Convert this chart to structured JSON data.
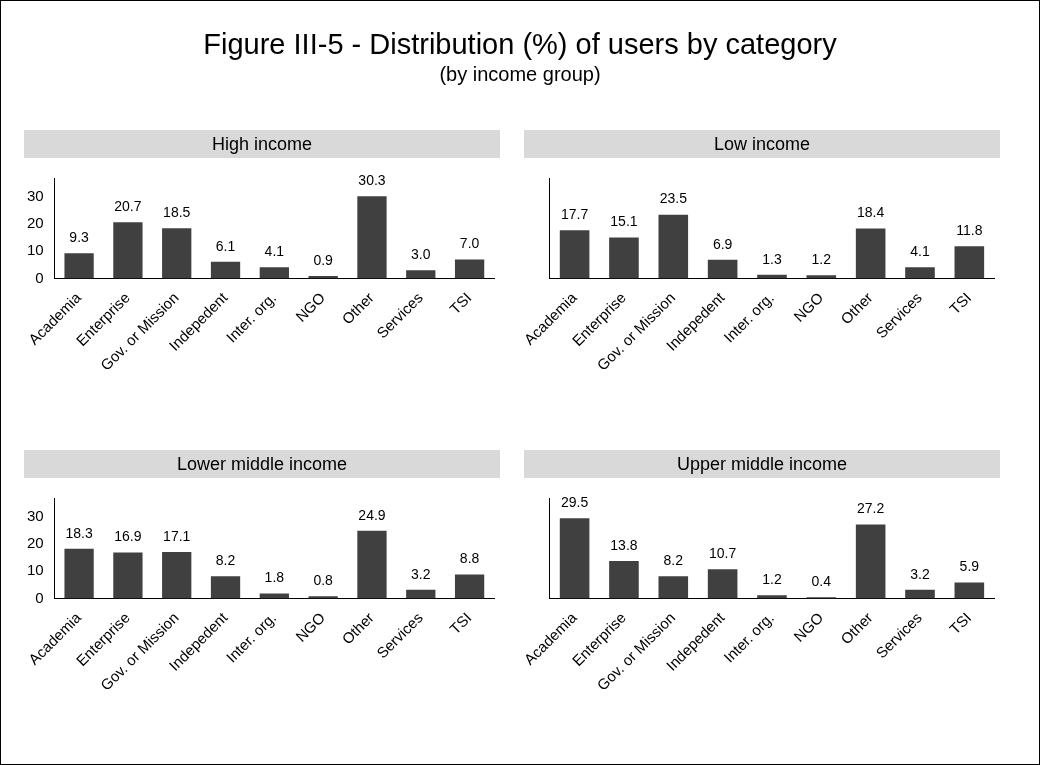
{
  "chart_data": [
    {
      "type": "other",
      "title": "Figure III-5 - Distribution (%) of users by category",
      "subtitle": "(by income group)"
    },
    {
      "type": "bar",
      "title": "High income",
      "categories": [
        "Academia",
        "Enterprise",
        "Gov. or Mission",
        "Indepedent",
        "Inter. org.",
        "NGO",
        "Other",
        "Services",
        "TSI"
      ],
      "values": [
        9.3,
        20.7,
        18.5,
        6.1,
        4.1,
        0.9,
        30.3,
        3.0,
        7.0
      ],
      "value_labels": [
        "9.3",
        "20.7",
        "18.5",
        "6.1",
        "4.1",
        "0.9",
        "30.3",
        "3.0",
        "7.0"
      ],
      "color": "#404040",
      "ylim": [
        0,
        37
      ],
      "yticks": [
        0,
        10,
        20,
        30
      ],
      "grid": false,
      "legend": false
    },
    {
      "type": "bar",
      "title": "Low income",
      "categories": [
        "Academia",
        "Enterprise",
        "Gov. or Mission",
        "Indepedent",
        "Inter. org.",
        "NGO",
        "Other",
        "Services",
        "TSI"
      ],
      "values": [
        17.7,
        15.1,
        23.5,
        6.9,
        1.3,
        1.2,
        18.4,
        4.1,
        11.8
      ],
      "value_labels": [
        "17.7",
        "15.1",
        "23.5",
        "6.9",
        "1.3",
        "1.2",
        "18.4",
        "4.1",
        "11.8"
      ],
      "color": "#404040",
      "ylim": [
        0,
        37
      ],
      "yticks": [
        0,
        10,
        20,
        30
      ],
      "grid": false,
      "legend": false,
      "tick_labels": "x"
    },
    {
      "type": "bar",
      "title": "Lower middle income",
      "categories": [
        "Academia",
        "Enterprise",
        "Gov. or Mission",
        "Indepedent",
        "Inter. org.",
        "NGO",
        "Other",
        "Services",
        "TSI"
      ],
      "values": [
        18.3,
        16.9,
        17.1,
        8.2,
        1.8,
        0.8,
        24.9,
        3.2,
        8.8
      ],
      "value_labels": [
        "18.3",
        "16.9",
        "17.1",
        "8.2",
        "1.8",
        "0.8",
        "24.9",
        "3.2",
        "8.8"
      ],
      "color": "#404040",
      "ylim": [
        0,
        37
      ],
      "yticks": [
        0,
        10,
        20,
        30
      ],
      "grid": false,
      "legend": false
    },
    {
      "type": "bar",
      "title": "Upper middle income",
      "categories": [
        "Academia",
        "Enterprise",
        "Gov. or Mission",
        "Indepedent",
        "Inter. org.",
        "NGO",
        "Other",
        "Services",
        "TSI"
      ],
      "values": [
        29.5,
        13.8,
        8.2,
        10.7,
        1.2,
        0.4,
        27.2,
        3.2,
        5.9
      ],
      "value_labels": [
        "29.5",
        "13.8",
        "8.2",
        "10.7",
        "1.2",
        "0.4",
        "27.2",
        "3.2",
        "5.9"
      ],
      "color": "#404040",
      "ylim": [
        0,
        37
      ],
      "yticks": [
        0,
        10,
        20,
        30
      ],
      "grid": false,
      "legend": false,
      "tick_labels": "x"
    }
  ]
}
